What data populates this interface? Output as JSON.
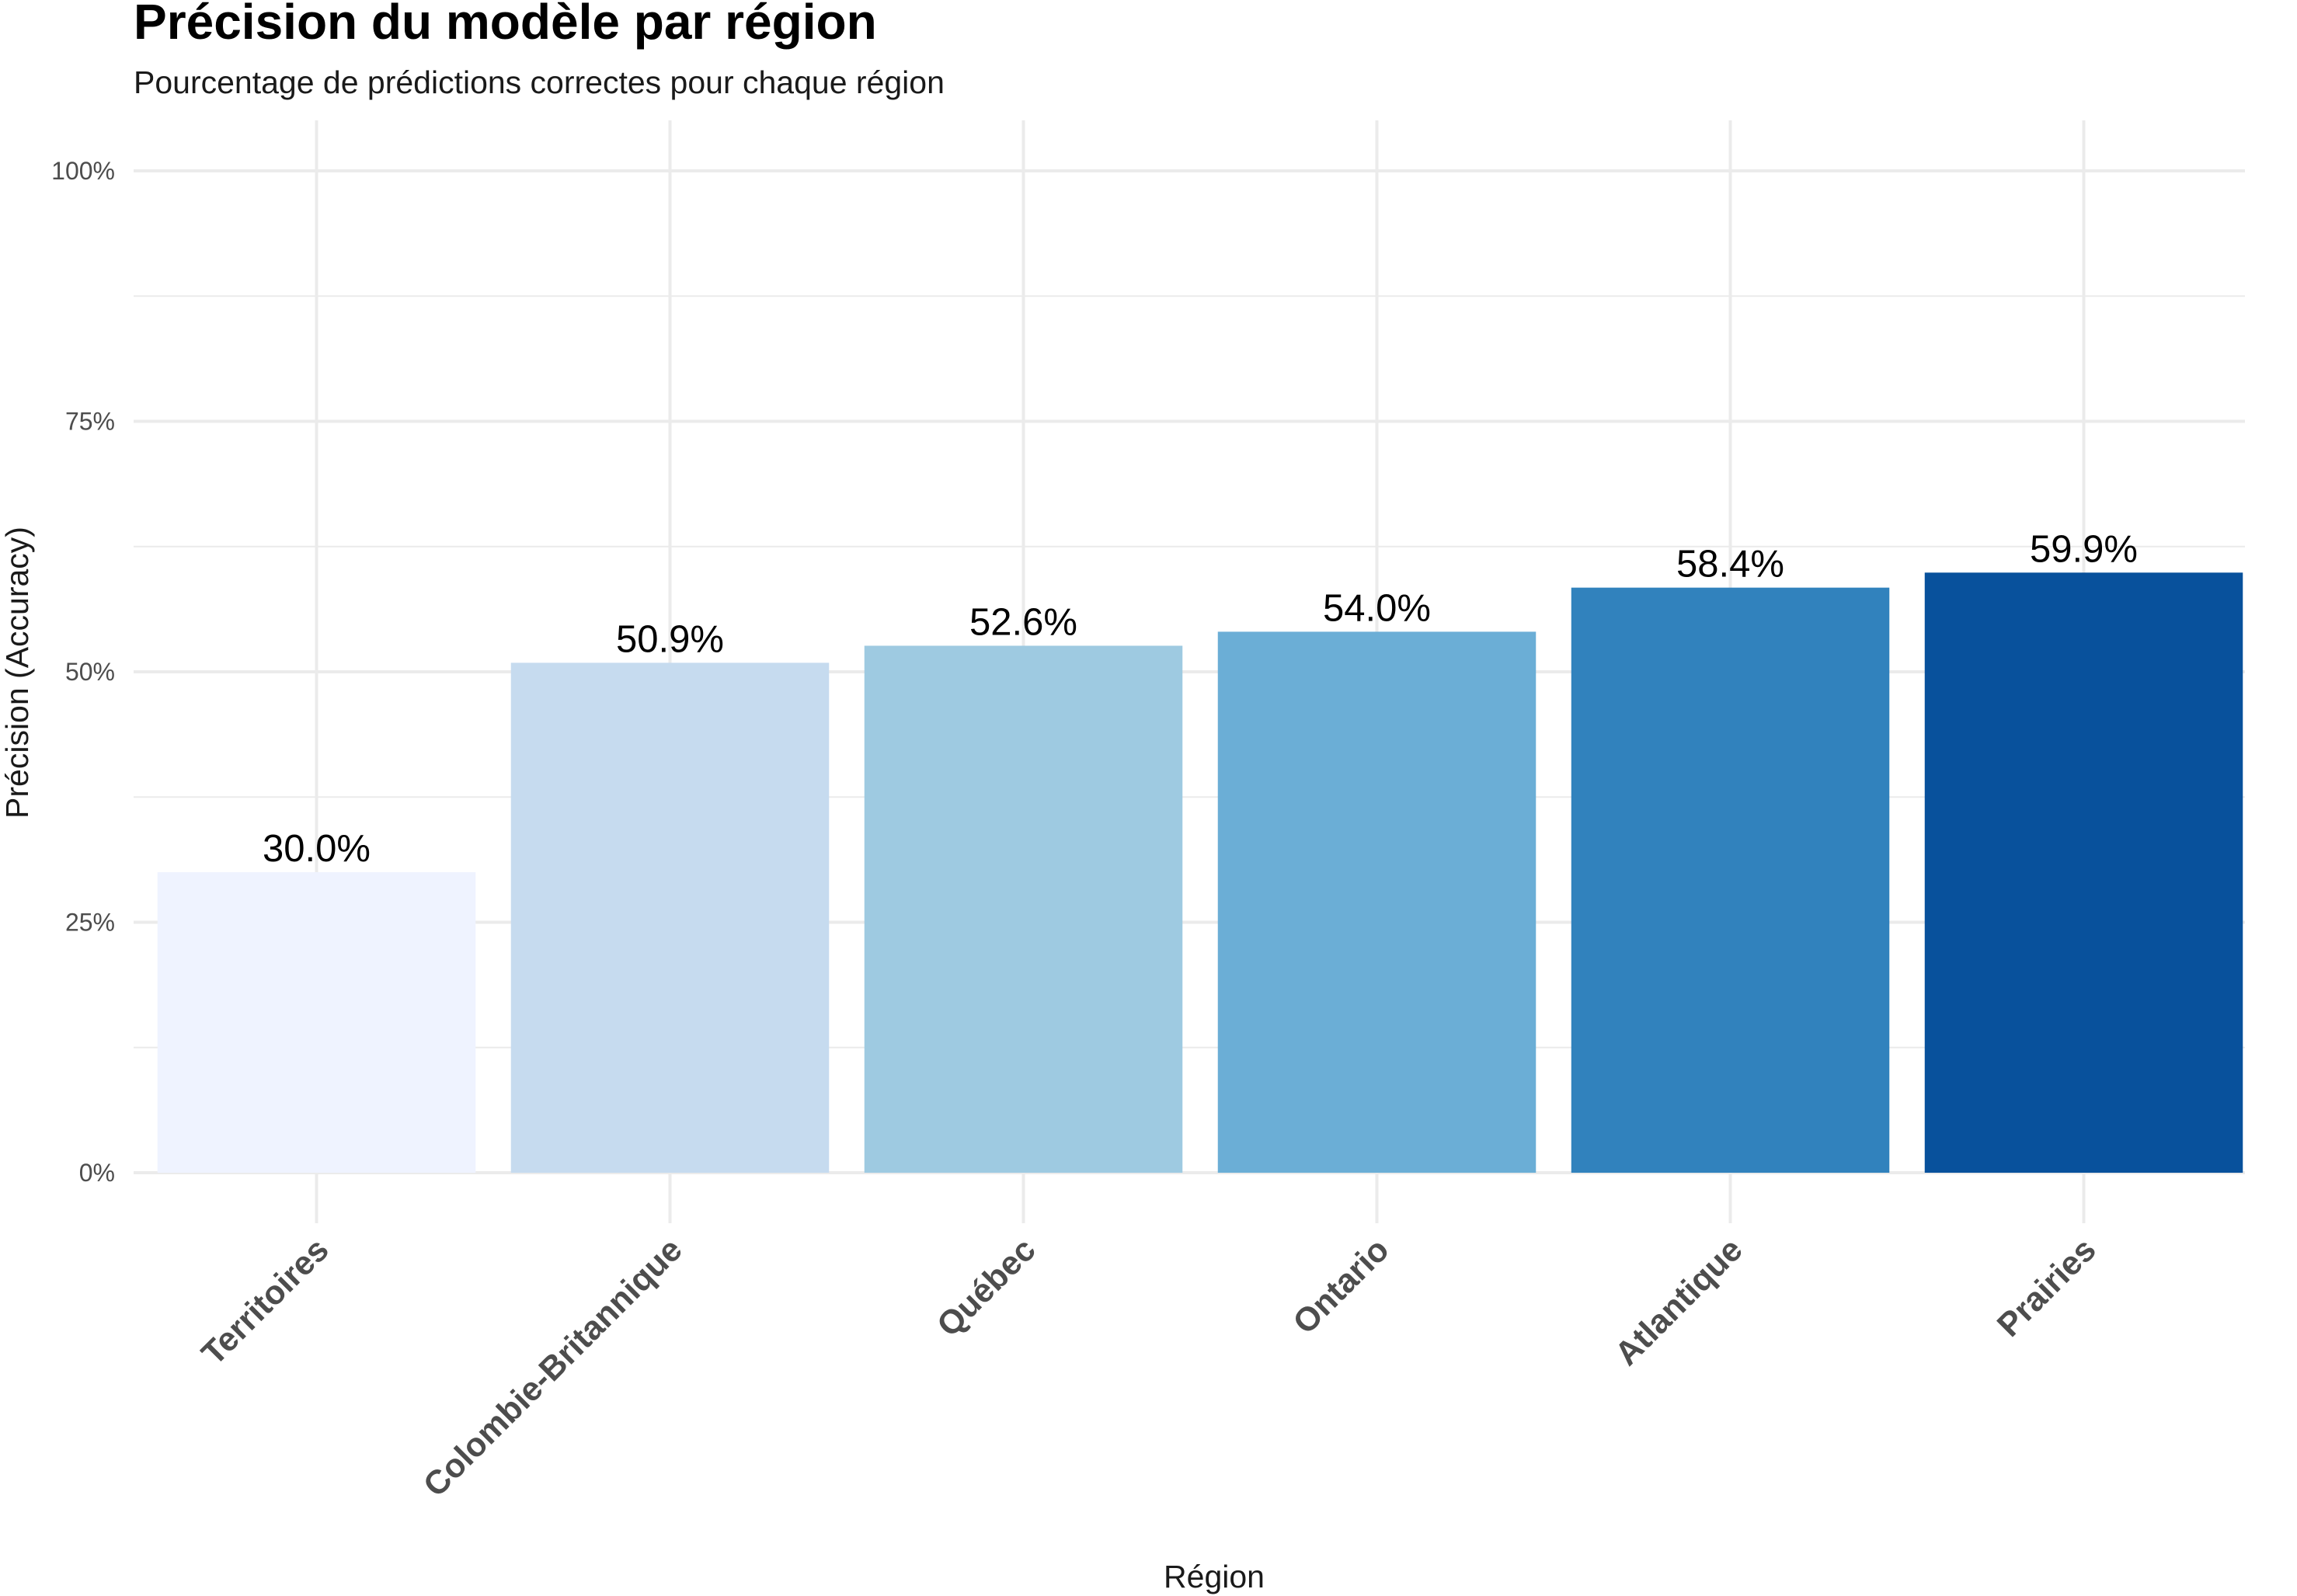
{
  "chart_data": {
    "type": "bar",
    "title": "Précision du modèle par région",
    "subtitle": "Pourcentage de prédictions correctes pour chaque région",
    "xlabel": "Région",
    "ylabel": "Précision (Accuracy)",
    "categories": [
      "Territoires",
      "Colombie-Britannique",
      "Québec",
      "Ontario",
      "Atlantique",
      "Prairies"
    ],
    "values": [
      30.0,
      50.9,
      52.6,
      54.0,
      58.4,
      59.9
    ],
    "value_labels": [
      "30.0%",
      "50.9%",
      "52.6%",
      "54.0%",
      "58.4%",
      "59.9%"
    ],
    "bar_colors": [
      "#eff3ff",
      "#c6dbef",
      "#9ecae1",
      "#6baed6",
      "#3182bd",
      "#08519c"
    ],
    "ylim": [
      0,
      100
    ],
    "yticks": [
      0,
      25,
      50,
      75,
      100
    ],
    "ytick_labels": [
      "0%",
      "25%",
      "50%",
      "75%",
      "100%"
    ],
    "grid": true,
    "legend": "none"
  }
}
